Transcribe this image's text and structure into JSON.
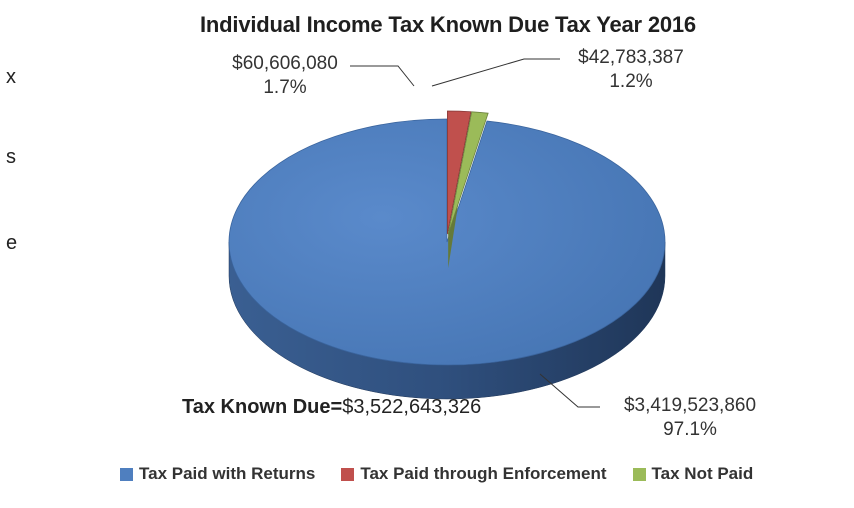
{
  "left_clip": [
    "x",
    "s",
    "e"
  ],
  "chart_data": {
    "type": "pie",
    "title": "Individual Income Tax Known Due Tax Year 2016",
    "total_label": "Tax Known Due=",
    "total_value": "$3,522,643,326",
    "slices": [
      {
        "name": "Tax Paid with Returns",
        "value": 3419523860,
        "value_label": "$3,419,523,860",
        "percent": 97.1,
        "percent_label": "97.1%",
        "color": "#4f7fbf"
      },
      {
        "name": "Tax Paid through Enforcement",
        "value": 60606080,
        "value_label": "$60,606,080",
        "percent": 1.7,
        "percent_label": "1.7%",
        "color": "#c0504d"
      },
      {
        "name": "Tax Not Paid",
        "value": 42783387,
        "value_label": "$42,783,387",
        "percent": 1.2,
        "percent_label": "1.2%",
        "color": "#9bbb59"
      }
    ],
    "legend_position": "bottom"
  }
}
